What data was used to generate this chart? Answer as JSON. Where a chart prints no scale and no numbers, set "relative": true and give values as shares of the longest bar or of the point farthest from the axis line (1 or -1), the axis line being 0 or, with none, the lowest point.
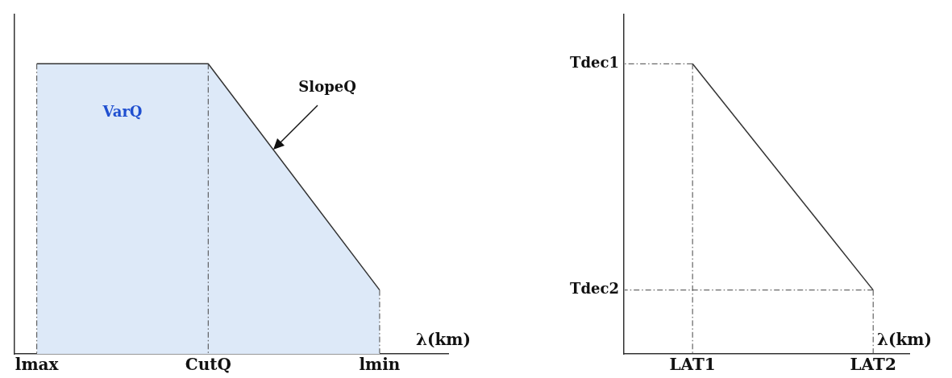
{
  "chart_data": [
    {
      "type": "area",
      "relative": true,
      "categories": [
        "lmax",
        "CutQ",
        "lmin"
      ],
      "xlabel": "λ(km)",
      "series": [
        {
          "color": "#dde9f8",
          "values": [
            1,
            1,
            0.22
          ]
        }
      ],
      "annotations": [
        "VarQ",
        "SlopeQ"
      ],
      "ref_lines": [
        {
          "axis": "x",
          "value": "lmax"
        },
        {
          "axis": "x",
          "value": "CutQ"
        },
        {
          "axis": "x",
          "value": "lmin"
        }
      ]
    },
    {
      "type": "line",
      "relative": true,
      "categories": [
        "LAT1",
        "LAT2"
      ],
      "xlabel": "λ(km)",
      "series": [
        {
          "color": "#333333",
          "values": [
            1,
            0.22
          ]
        }
      ],
      "annotations": [
        {
          "text": "Tdec1",
          "x": "LAT1",
          "y": 1
        },
        {
          "text": "Tdec2",
          "x": "LAT2",
          "y": 0.22
        }
      ],
      "ref_lines": [
        {
          "axis": "x",
          "value": "LAT1"
        },
        {
          "axis": "x",
          "value": "LAT2"
        }
      ]
    }
  ]
}
